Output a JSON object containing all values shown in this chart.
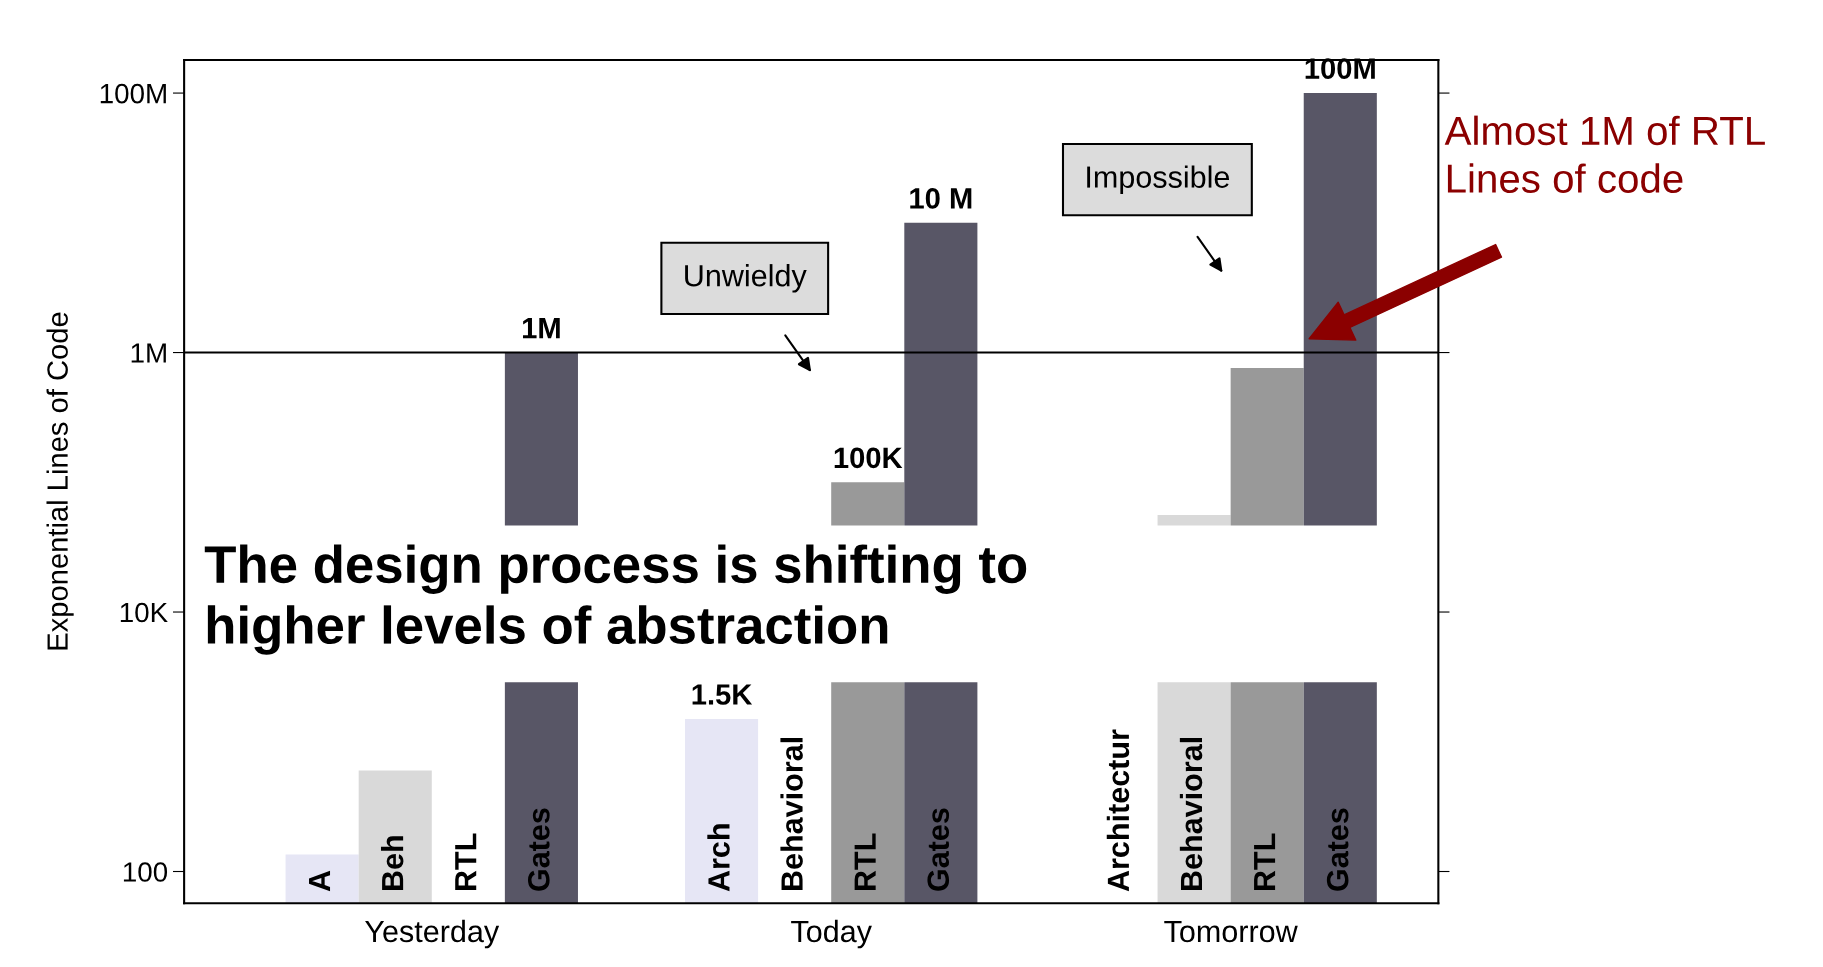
{
  "chart_data": {
    "type": "bar",
    "ylabel": "Exponential Lines of Code",
    "log": true,
    "categories": [
      "Yesterday",
      "Today",
      "Tomorrow"
    ],
    "series": [
      {
        "color": "#e6e6f5",
        "values": [
          135,
          1500,
          null
        ],
        "value_labels": [
          null,
          "1.5K",
          null
        ]
      },
      {
        "color": "#d9d9d9",
        "values": [
          600,
          null,
          56000
        ],
        "value_labels": [
          null,
          null,
          null
        ]
      },
      {
        "color": "#999999",
        "values": [
          null,
          100000,
          760000
        ],
        "value_labels": [
          null,
          "100K",
          null
        ]
      },
      {
        "color": "#585666",
        "values": [
          1000000,
          10000000,
          100000000
        ],
        "value_labels": [
          "1M",
          "10 M",
          "100M"
        ]
      }
    ],
    "ylim": [
      57,
      180000000
    ],
    "yticks": [
      {
        "value": 100,
        "label": "100"
      },
      {
        "value": 10000,
        "label": "10K"
      },
      {
        "value": 1000000,
        "label": "1M"
      },
      {
        "value": 100000000,
        "label": "100M"
      }
    ],
    "ref_lines": [
      {
        "axis": "y",
        "value": 1000000,
        "color": "#000000"
      }
    ],
    "grid": false,
    "legend": false,
    "annotations": [
      "A",
      "Beh",
      "RTL",
      "Gates",
      "Arch",
      "Behavioral",
      "RTL",
      "Gates",
      "Architectur",
      "Behavioral",
      "RTL",
      "Gates",
      "Unwieldy",
      "Impossible",
      "Almost 1M of RTL\nLines of code",
      "The design process is shifting to\nhigher levels of abstraction"
    ]
  }
}
